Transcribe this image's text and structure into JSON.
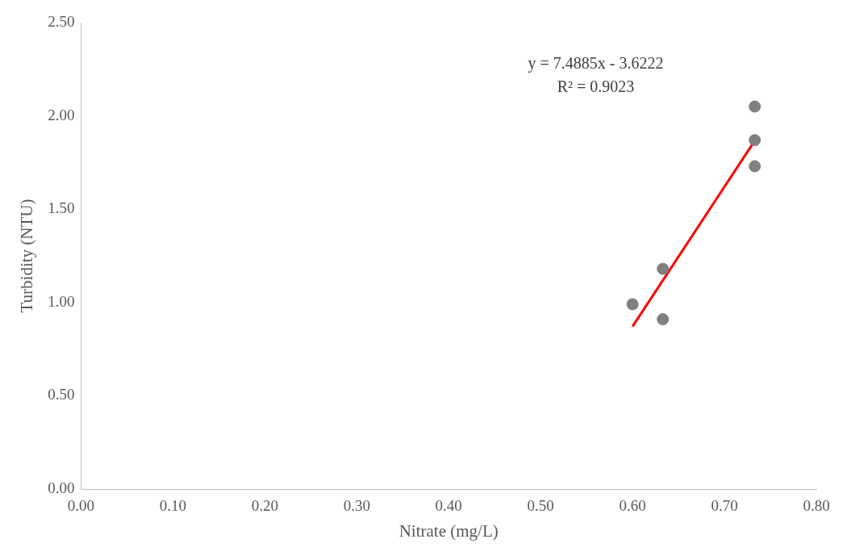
{
  "chart_data": {
    "type": "scatter",
    "xlabel": "Nitrate (mg/L)",
    "ylabel": "Turbidity (NTU)",
    "annotations": [
      "y = 7.4885x - 3.6222",
      "R² = 0.9023"
    ],
    "series": [
      {
        "color": "#808080",
        "marker": "circle",
        "x": [
          0.6,
          0.633,
          0.633,
          0.733,
          0.733,
          0.733
        ],
        "values": [
          0.99,
          1.18,
          0.91,
          2.05,
          1.87,
          1.73
        ]
      },
      {
        "type": "line",
        "marker": "none",
        "color": "#ff0000",
        "x": [
          0.6,
          0.733
        ],
        "values": [
          0.871,
          1.867
        ]
      }
    ],
    "xlim": [
      0,
      0.8
    ],
    "xticks": [
      {
        "value": 0,
        "label": "0.00"
      },
      {
        "value": 0.1,
        "label": "0.10"
      },
      {
        "value": 0.2,
        "label": "0.20"
      },
      {
        "value": 0.3,
        "label": "0.30"
      },
      {
        "value": 0.4,
        "label": "0.40"
      },
      {
        "value": 0.5,
        "label": "0.50"
      },
      {
        "value": 0.6,
        "label": "0.60"
      },
      {
        "value": 0.7,
        "label": "0.70"
      },
      {
        "value": 0.8,
        "label": "0.80"
      }
    ],
    "ylim": [
      0,
      2.5
    ],
    "yticks": [
      {
        "value": 0,
        "label": "0.00"
      },
      {
        "value": 0.5,
        "label": "0.50"
      },
      {
        "value": 1,
        "label": "1.00"
      },
      {
        "value": 1.5,
        "label": "1.50"
      },
      {
        "value": 2,
        "label": "2.00"
      },
      {
        "value": 2.5,
        "label": "2.50"
      }
    ]
  }
}
